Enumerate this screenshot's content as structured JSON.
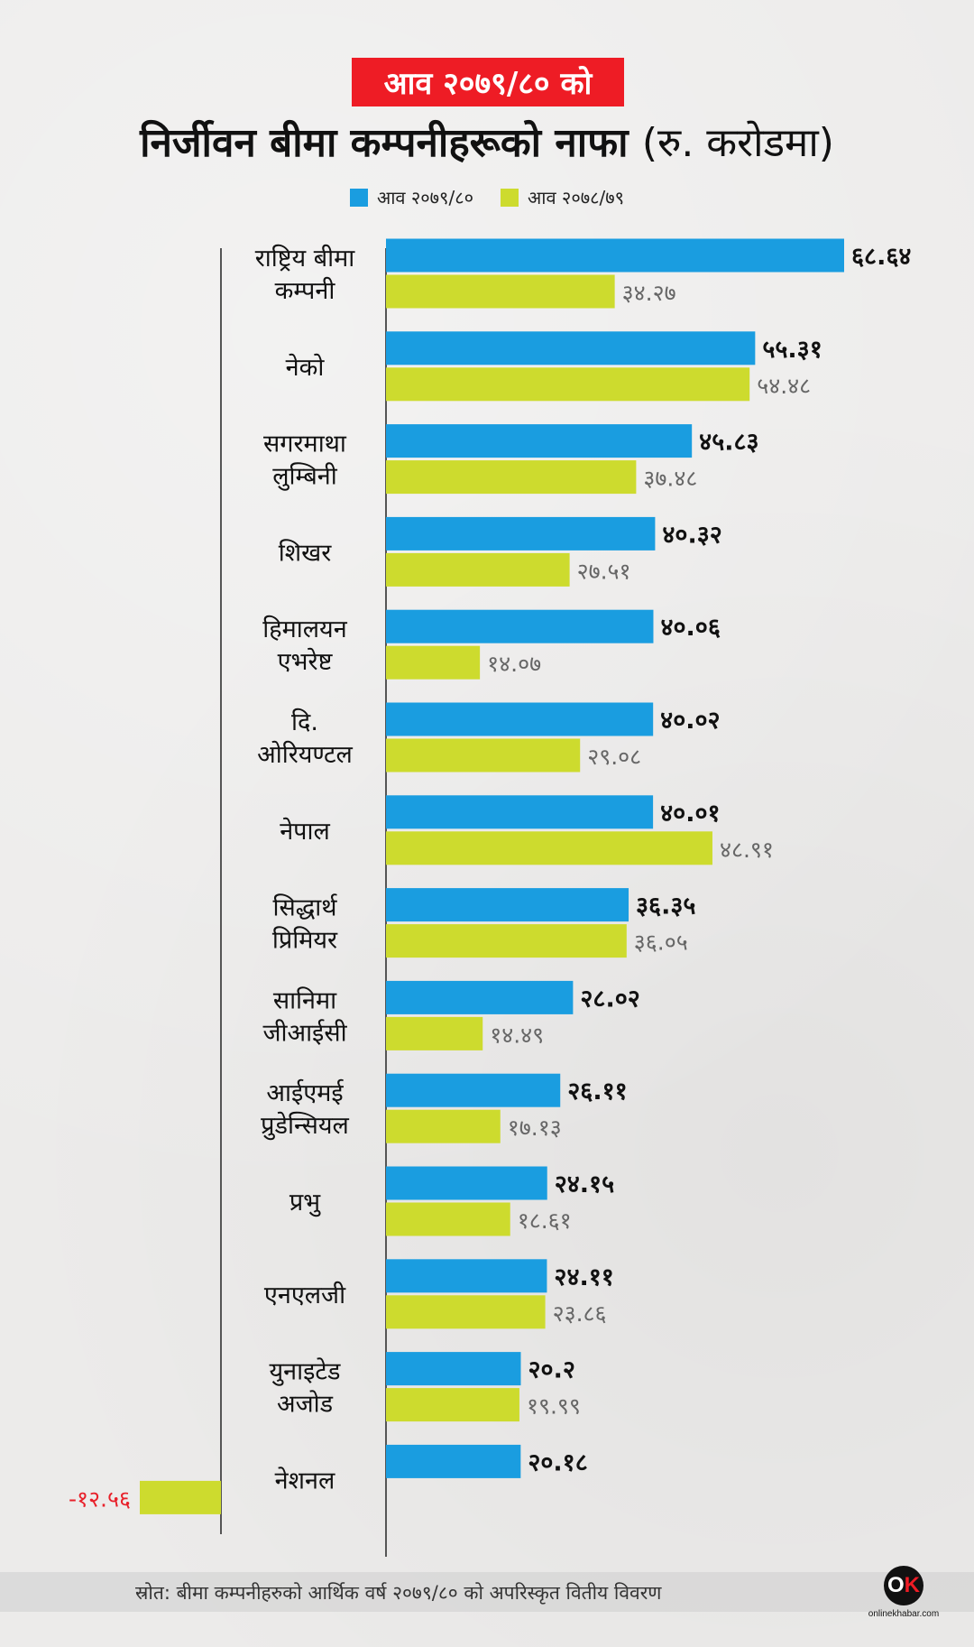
{
  "header": {
    "subtitle": "आव २०७९/८० को",
    "title": "निर्जीवन बीमा कम्पनीहरूको नाफा",
    "title_unit": "(रु. करोडमा)"
  },
  "colors": {
    "current": "#1a9de0",
    "previous": "#cddb2e",
    "negative_label": "#e8202a",
    "axis": "#666666"
  },
  "chart_data": {
    "type": "bar",
    "orientation": "horizontal",
    "categories": [
      [
        "राष्ट्रिय बीमा",
        "कम्पनी"
      ],
      [
        "नेको"
      ],
      [
        "सगरमाथा",
        "लुम्बिनी"
      ],
      [
        "शिखर"
      ],
      [
        "हिमालयन",
        "एभरेष्ट"
      ],
      [
        "दि.",
        "ओरियण्टल"
      ],
      [
        "नेपाल"
      ],
      [
        "सिद्धार्थ",
        "प्रिमियर"
      ],
      [
        "सानिमा",
        "जीआईसी"
      ],
      [
        "आईएमई",
        "प्रुडेन्सियल"
      ],
      [
        "प्रभु"
      ],
      [
        "एनएलजी"
      ],
      [
        "युनाइटेड",
        "अजोड"
      ],
      [
        "नेशनल"
      ]
    ],
    "series": [
      {
        "name": "आव २०७९/८०",
        "values": [
          68.64,
          55.31,
          45.83,
          40.32,
          40.06,
          40.02,
          40.01,
          36.35,
          28.02,
          26.11,
          24.15,
          24.11,
          20.2,
          20.18
        ],
        "labels": [
          "६८.६४",
          "५५.३१",
          "४५.८३",
          "४०.३२",
          "४०.०६",
          "४०.०२",
          "४०.०१",
          "३६.३५",
          "२८.०२",
          "२६.११",
          "२४.१५",
          "२४.११",
          "२०.२",
          "२०.१८"
        ]
      },
      {
        "name": "आव २०७८/७९",
        "values": [
          34.27,
          54.48,
          37.48,
          27.51,
          14.07,
          29.08,
          48.91,
          36.05,
          14.49,
          17.13,
          18.61,
          23.86,
          19.99,
          -12.56
        ],
        "labels": [
          "३४.२७",
          "५४.४८",
          "३७.४८",
          "२७.५१",
          "१४.०७",
          "२९.०८",
          "४८.९१",
          "३६.०५",
          "१४.४९",
          "१७.१३",
          "१८.६१",
          "२३.८६",
          "१९.९९",
          "-१२.५६"
        ]
      }
    ]
  },
  "source": "स्रोत: बीमा कम्पनीहरुको आर्थिक वर्ष २०७९/८० को अपरिस्कृत वितीय विवरण",
  "logo": {
    "mark": "OK",
    "text": "onlinekhabar.com"
  }
}
